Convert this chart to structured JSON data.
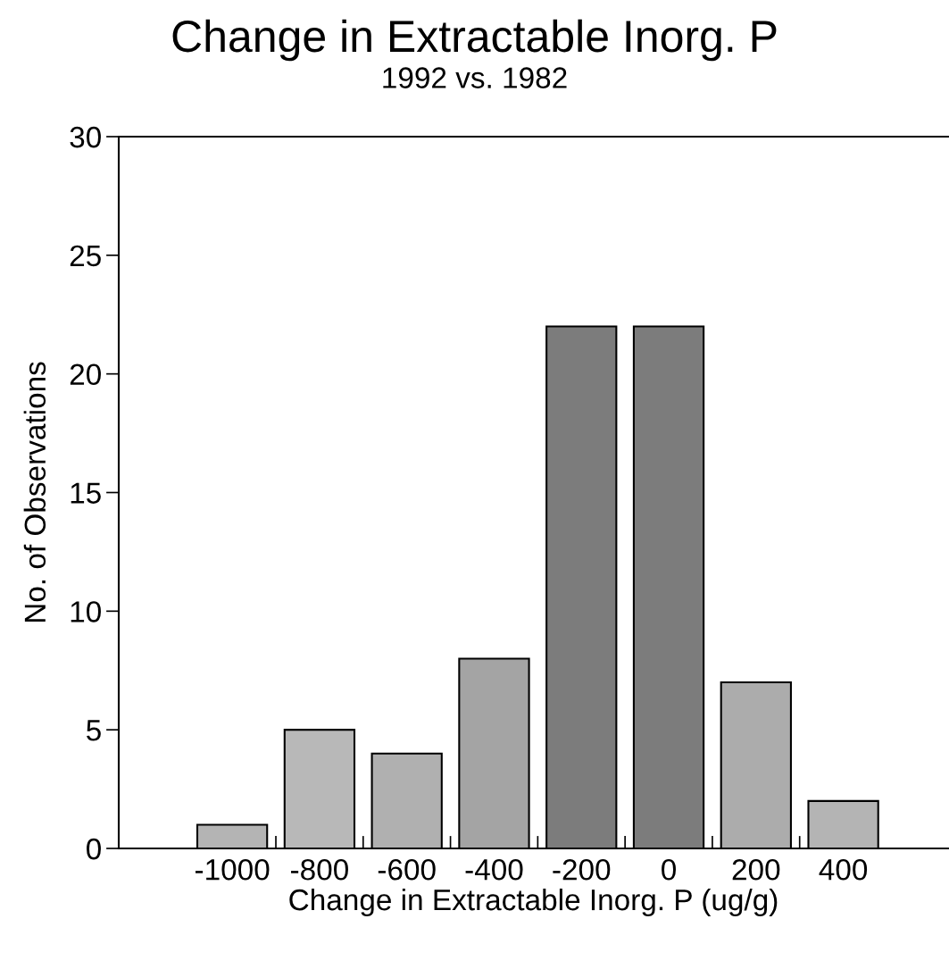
{
  "chart_data": {
    "type": "bar",
    "title": "Change in Extractable Inorg. P",
    "subtitle": "1992 vs. 1982",
    "xlabel": "Change in Extractable Inorg. P (ug/g)",
    "ylabel": "No. of Observations",
    "categories": [
      "-1000",
      "-800",
      "-600",
      "-400",
      "-200",
      "0",
      "200",
      "400"
    ],
    "values": [
      1,
      5,
      4,
      8,
      22,
      22,
      7,
      2
    ],
    "colors": [
      "#b4b4b4",
      "#b8b8b8",
      "#b0b0b0",
      "#a4a4a4",
      "#7c7c7c",
      "#7c7c7c",
      "#acacac",
      "#b4b4b4"
    ],
    "ylim": [
      0,
      30
    ],
    "yticks": [
      0,
      5,
      10,
      15,
      20,
      25,
      30
    ],
    "grid": false,
    "legend": false
  }
}
